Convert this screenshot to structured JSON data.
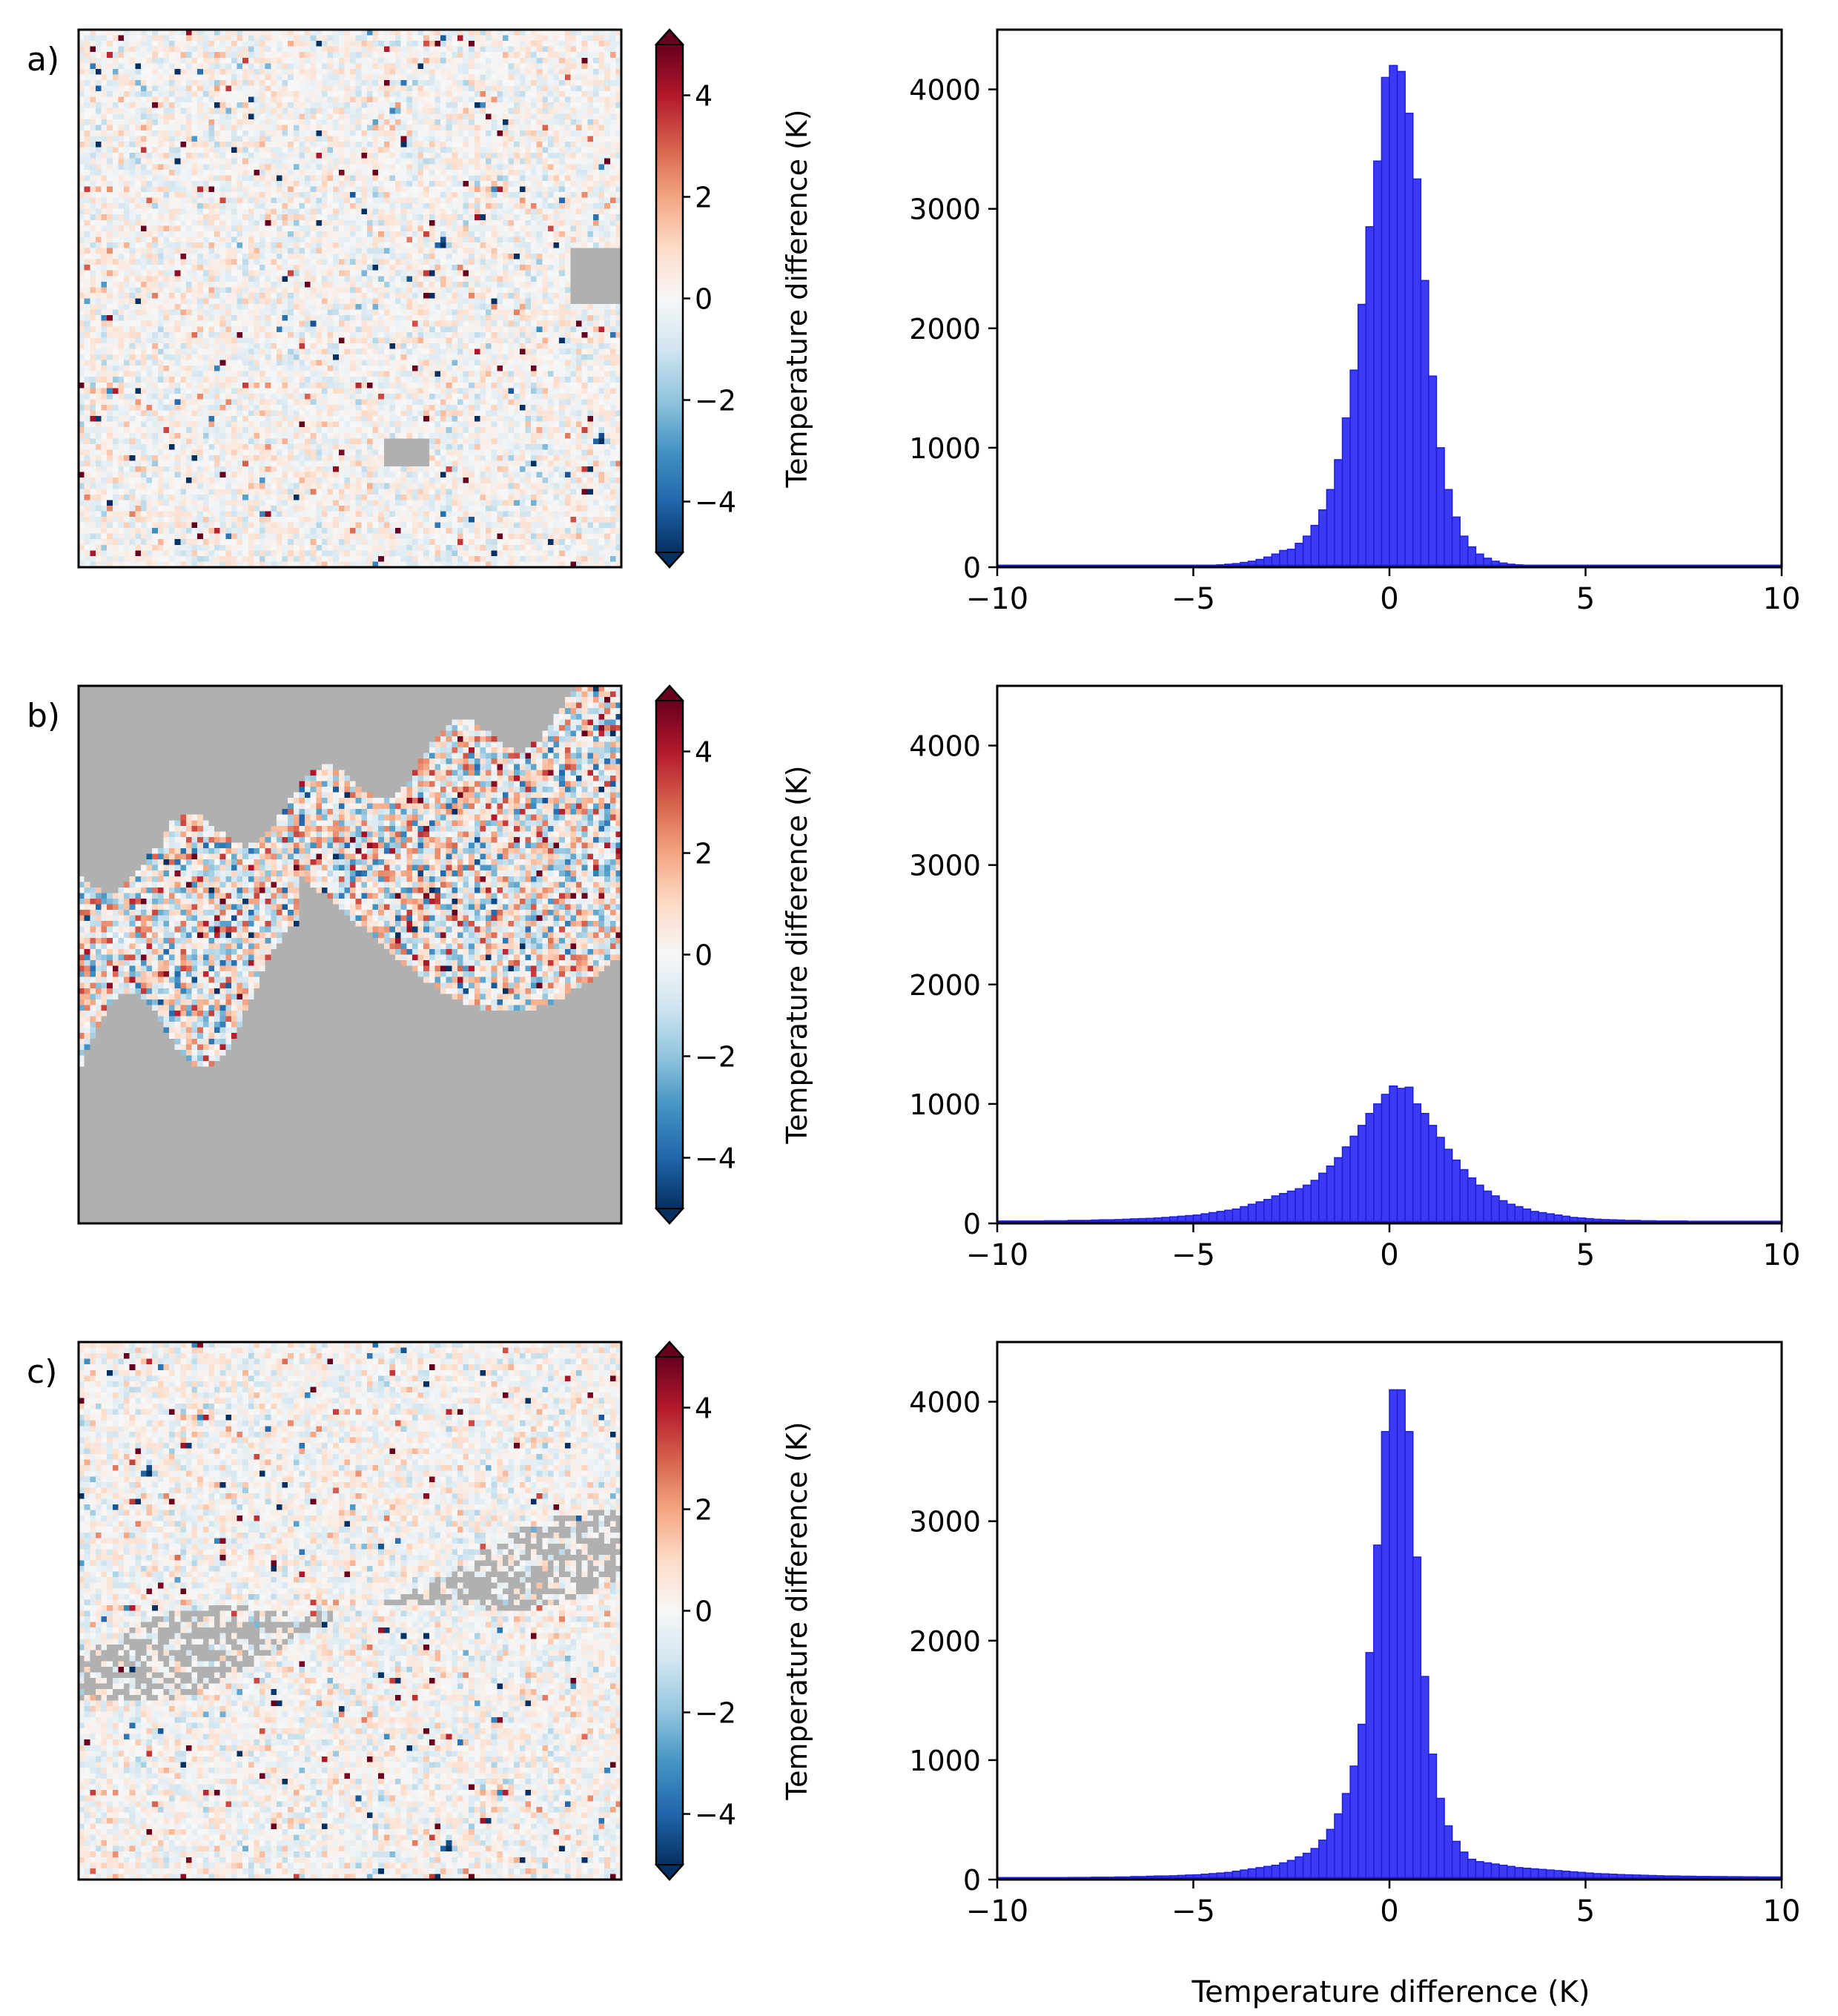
{
  "figure": {
    "panel_labels": [
      "a)",
      "b)",
      "c)"
    ],
    "colorbar_label": "Temperature difference (K)",
    "colorbar_ticks": [
      "4",
      "2",
      "0",
      "−2",
      "−4"
    ],
    "colorbar_tick_values": [
      4,
      2,
      0,
      -2,
      -4
    ],
    "colormap": [
      "#053061",
      "#2166ac",
      "#4393c3",
      "#92c5de",
      "#d1e5f0",
      "#f7f7f7",
      "#fddbc7",
      "#f4a582",
      "#d6604d",
      "#b2182b",
      "#67001f"
    ],
    "colormap_range": [
      -5,
      5
    ],
    "mask_color": "#b0b0b0",
    "hist_color": "#3b3bf5",
    "hist_edge_color": "#1f1fd8",
    "x_tick_labels": [
      "−10",
      "−5",
      "0",
      "5",
      "10"
    ],
    "y_tick_labels": [
      "0",
      "1000",
      "2000",
      "3000",
      "4000"
    ],
    "bottom_xlabel": "Temperature difference (K)"
  },
  "chart_data": [
    {
      "type": "heatmap",
      "panel": "a)",
      "colorbar": {
        "label": "Temperature difference (K)",
        "range": [
          -5,
          5
        ],
        "ticks": [
          -4,
          -2,
          0,
          2,
          4
        ],
        "extend": "both"
      },
      "masked_fraction": 0.02,
      "description_values": {
        "dominant_range": [
          -1,
          1
        ]
      }
    },
    {
      "type": "bar",
      "panel": "a)",
      "xlim": [
        -10,
        10
      ],
      "ylim": [
        0,
        4500
      ],
      "xticks": [
        -10,
        -5,
        0,
        5,
        10
      ],
      "yticks": [
        0,
        1000,
        2000,
        3000,
        4000
      ],
      "bin_width": 0.2,
      "x": [
        -5.0,
        -4.8,
        -4.6,
        -4.4,
        -4.2,
        -4.0,
        -3.8,
        -3.6,
        -3.4,
        -3.2,
        -3.0,
        -2.8,
        -2.6,
        -2.4,
        -2.2,
        -2.0,
        -1.8,
        -1.6,
        -1.4,
        -1.2,
        -1.0,
        -0.8,
        -0.6,
        -0.4,
        -0.2,
        0.0,
        0.2,
        0.4,
        0.6,
        0.8,
        1.0,
        1.2,
        1.4,
        1.6,
        1.8,
        2.0,
        2.2,
        2.4,
        2.6,
        2.8,
        3.0,
        3.2,
        3.4,
        3.6,
        3.8,
        4.0,
        4.2,
        4.4,
        4.6,
        4.8
      ],
      "values": [
        10,
        12,
        15,
        20,
        25,
        30,
        40,
        50,
        65,
        85,
        110,
        140,
        150,
        200,
        260,
        350,
        480,
        650,
        900,
        1250,
        1650,
        2200,
        2850,
        3400,
        4100,
        4200,
        4150,
        3800,
        3250,
        2400,
        1600,
        1000,
        650,
        420,
        260,
        170,
        110,
        75,
        50,
        35,
        25,
        20,
        15,
        12,
        10,
        8,
        6,
        5,
        4,
        3
      ]
    },
    {
      "type": "heatmap",
      "panel": "b)",
      "colorbar": {
        "label": "Temperature difference (K)",
        "range": [
          -5,
          5
        ],
        "ticks": [
          -4,
          -2,
          0,
          2,
          4
        ],
        "extend": "both"
      },
      "masked_fraction": 0.55,
      "description_values": {
        "dominant_range": [
          -3,
          3
        ]
      }
    },
    {
      "type": "bar",
      "panel": "b)",
      "xlim": [
        -10,
        10
      ],
      "ylim": [
        0,
        4500
      ],
      "xticks": [
        -10,
        -5,
        0,
        5,
        10
      ],
      "yticks": [
        0,
        1000,
        2000,
        3000,
        4000
      ],
      "bin_width": 0.2,
      "x": [
        -10.0,
        -9.8,
        -9.6,
        -9.4,
        -9.2,
        -9.0,
        -8.8,
        -8.6,
        -8.4,
        -8.2,
        -8.0,
        -7.8,
        -7.6,
        -7.4,
        -7.2,
        -7.0,
        -6.8,
        -6.6,
        -6.4,
        -6.2,
        -6.0,
        -5.8,
        -5.6,
        -5.4,
        -5.2,
        -5.0,
        -4.8,
        -4.6,
        -4.4,
        -4.2,
        -4.0,
        -3.8,
        -3.6,
        -3.4,
        -3.2,
        -3.0,
        -2.8,
        -2.6,
        -2.4,
        -2.2,
        -2.0,
        -1.8,
        -1.6,
        -1.4,
        -1.2,
        -1.0,
        -0.8,
        -0.6,
        -0.4,
        -0.2,
        0.0,
        0.2,
        0.4,
        0.6,
        0.8,
        1.0,
        1.2,
        1.4,
        1.6,
        1.8,
        2.0,
        2.2,
        2.4,
        2.6,
        2.8,
        3.0,
        3.2,
        3.4,
        3.6,
        3.8,
        4.0,
        4.2,
        4.4,
        4.6,
        4.8,
        5.0,
        5.2,
        5.4,
        5.6,
        5.8,
        6.0,
        6.2,
        6.4,
        6.6,
        6.8,
        7.0,
        7.2,
        7.4,
        7.6,
        7.8,
        8.0,
        8.2,
        8.4,
        8.6,
        8.8,
        9.0,
        9.2,
        9.4,
        9.6,
        9.8
      ],
      "values": [
        20,
        20,
        20,
        20,
        20,
        20,
        22,
        22,
        22,
        25,
        25,
        25,
        28,
        30,
        30,
        32,
        35,
        38,
        40,
        42,
        45,
        50,
        55,
        60,
        65,
        70,
        80,
        90,
        100,
        110,
        120,
        140,
        160,
        180,
        200,
        230,
        250,
        270,
        290,
        320,
        360,
        420,
        480,
        550,
        640,
        730,
        820,
        920,
        1000,
        1080,
        1150,
        1130,
        1140,
        1000,
        920,
        820,
        720,
        620,
        530,
        450,
        380,
        320,
        270,
        230,
        190,
        160,
        140,
        120,
        100,
        90,
        80,
        70,
        60,
        50,
        45,
        40,
        35,
        32,
        30,
        28,
        25,
        25,
        22,
        22,
        20,
        20,
        20,
        20,
        18,
        18,
        18,
        18,
        18,
        18,
        18,
        18,
        18,
        18,
        18,
        18
      ]
    },
    {
      "type": "heatmap",
      "panel": "c)",
      "colorbar": {
        "label": "Temperature difference (K)",
        "range": [
          -5,
          5
        ],
        "ticks": [
          -4,
          -2,
          0,
          2,
          4
        ],
        "extend": "both"
      },
      "masked_fraction": 0.05,
      "description_values": {
        "dominant_range": [
          -1,
          1
        ]
      }
    },
    {
      "type": "bar",
      "panel": "c)",
      "xlim": [
        -10,
        10
      ],
      "ylim": [
        0,
        4500
      ],
      "xticks": [
        -10,
        -5,
        0,
        5,
        10
      ],
      "yticks": [
        0,
        1000,
        2000,
        3000,
        4000
      ],
      "xlabel": "Temperature difference (K)",
      "bin_width": 0.2,
      "x": [
        -10.0,
        -9.8,
        -9.6,
        -9.4,
        -9.2,
        -9.0,
        -8.8,
        -8.6,
        -8.4,
        -8.2,
        -8.0,
        -7.8,
        -7.6,
        -7.4,
        -7.2,
        -7.0,
        -6.8,
        -6.6,
        -6.4,
        -6.2,
        -6.0,
        -5.8,
        -5.6,
        -5.4,
        -5.2,
        -5.0,
        -4.8,
        -4.6,
        -4.4,
        -4.2,
        -4.0,
        -3.8,
        -3.6,
        -3.4,
        -3.2,
        -3.0,
        -2.8,
        -2.6,
        -2.4,
        -2.2,
        -2.0,
        -1.8,
        -1.6,
        -1.4,
        -1.2,
        -1.0,
        -0.8,
        -0.6,
        -0.4,
        -0.2,
        0.0,
        0.2,
        0.4,
        0.6,
        0.8,
        1.0,
        1.2,
        1.4,
        1.6,
        1.8,
        2.0,
        2.2,
        2.4,
        2.6,
        2.8,
        3.0,
        3.2,
        3.4,
        3.6,
        3.8,
        4.0,
        4.2,
        4.4,
        4.6,
        4.8,
        5.0,
        5.2,
        5.4,
        5.6,
        5.8,
        6.0,
        6.2,
        6.4,
        6.6,
        6.8,
        7.0,
        7.2,
        7.4,
        7.6,
        7.8,
        8.0,
        8.2,
        8.4,
        8.6,
        8.8,
        9.0,
        9.2,
        9.4,
        9.6,
        9.8
      ],
      "values": [
        15,
        15,
        15,
        15,
        15,
        15,
        16,
        16,
        16,
        18,
        18,
        18,
        20,
        20,
        20,
        22,
        22,
        25,
        25,
        28,
        30,
        30,
        32,
        35,
        38,
        40,
        45,
        50,
        55,
        60,
        70,
        80,
        90,
        100,
        110,
        120,
        140,
        160,
        190,
        220,
        260,
        330,
        420,
        550,
        720,
        950,
        1300,
        1900,
        2800,
        3750,
        4100,
        4100,
        3750,
        2700,
        1700,
        1050,
        680,
        450,
        320,
        230,
        170,
        150,
        140,
        130,
        120,
        110,
        100,
        95,
        90,
        85,
        80,
        75,
        70,
        65,
        60,
        55,
        50,
        48,
        45,
        42,
        40,
        38,
        36,
        34,
        32,
        30,
        30,
        28,
        28,
        26,
        26,
        25,
        25,
        24,
        24,
        23,
        23,
        22,
        22,
        22
      ]
    }
  ]
}
